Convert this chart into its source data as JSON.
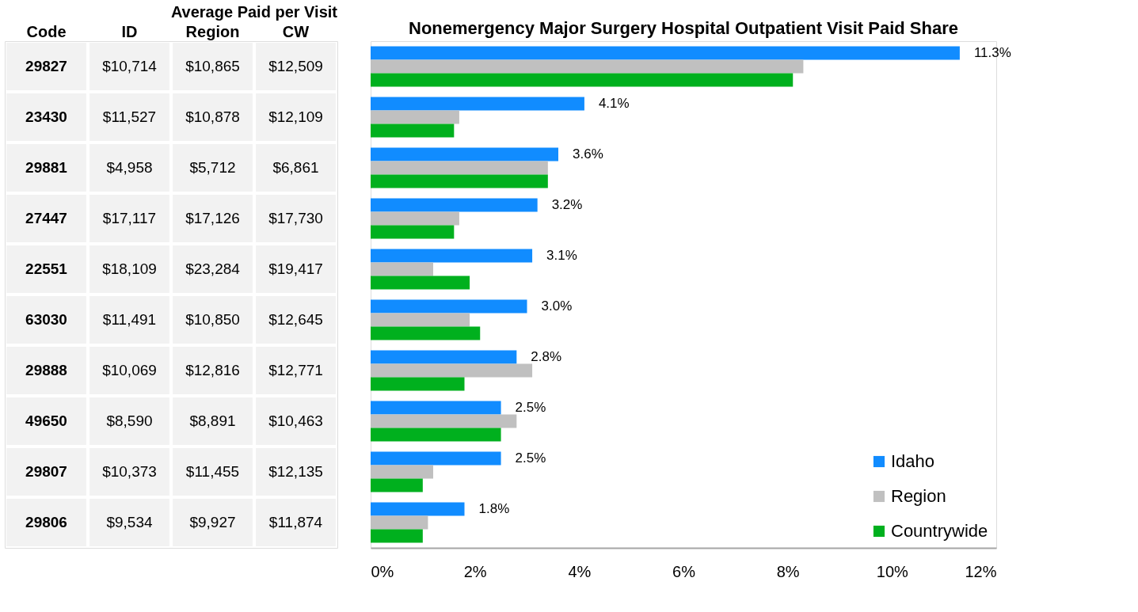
{
  "chart_data": [
    {
      "type": "other",
      "title": "Average Paid per Visit",
      "ylabel": "Code",
      "categories": [
        "29827",
        "23430",
        "29881",
        "27447",
        "22551",
        "63030",
        "29888",
        "49650",
        "29807",
        "29806"
      ],
      "series": [
        {
          "name": "ID",
          "values": [
            10714,
            11527,
            4958,
            17117,
            18109,
            11491,
            10069,
            8590,
            10373,
            9534
          ],
          "value_labels": [
            "$10,714",
            "$11,527",
            "$4,958",
            "$17,117",
            "$18,109",
            "$11,491",
            "$10,069",
            "$8,590",
            "$10,373",
            "$9,534"
          ]
        },
        {
          "name": "Region",
          "values": [
            10865,
            10878,
            5712,
            17126,
            23284,
            10850,
            12816,
            8891,
            11455,
            9927
          ],
          "value_labels": [
            "$10,865",
            "$10,878",
            "$5,712",
            "$17,126",
            "$23,284",
            "$10,850",
            "$12,816",
            "$8,891",
            "$11,455",
            "$9,927"
          ]
        },
        {
          "name": "CW",
          "values": [
            12509,
            12109,
            6861,
            17730,
            19417,
            12645,
            12771,
            10463,
            12135,
            11874
          ],
          "value_labels": [
            "$12,509",
            "$12,109",
            "$6,861",
            "$17,730",
            "$19,417",
            "$12,645",
            "$12,771",
            "$10,463",
            "$12,135",
            "$11,874"
          ]
        }
      ]
    },
    {
      "type": "bar",
      "orientation": "horizontal",
      "title": "Nonemergency Major Surgery Hospital Outpatient Visit Paid Share",
      "categories": [
        "29827",
        "23430",
        "29881",
        "27447",
        "22551",
        "63030",
        "29888",
        "49650",
        "29807",
        "29806"
      ],
      "tick_labels": "x",
      "grid": false,
      "legend": "bottom right",
      "xlim": [
        0,
        12
      ],
      "xticks": [
        {
          "value": 0,
          "label": "0%"
        },
        {
          "value": 2,
          "label": "2%"
        },
        {
          "value": 4,
          "label": "4%"
        },
        {
          "value": 6,
          "label": "6%"
        },
        {
          "value": 8,
          "label": "8%"
        },
        {
          "value": 10,
          "label": "10%"
        },
        {
          "value": 12,
          "label": "12%"
        }
      ],
      "series": [
        {
          "name": "Idaho",
          "color": "#118cff",
          "values": [
            11.3,
            4.1,
            3.6,
            3.2,
            3.1,
            3.0,
            2.8,
            2.5,
            2.5,
            1.8
          ],
          "value_labels": [
            "11.3%",
            "4.1%",
            "3.6%",
            "3.2%",
            "3.1%",
            "3.0%",
            "2.8%",
            "2.5%",
            "2.5%",
            "1.8%"
          ]
        },
        {
          "name": "Region",
          "color": "#c0c0c0",
          "values": [
            8.3,
            1.7,
            3.4,
            1.7,
            1.2,
            1.9,
            3.1,
            2.8,
            1.2,
            1.1
          ]
        },
        {
          "name": "Countrywide",
          "color": "#00b01e",
          "values": [
            8.1,
            1.6,
            3.4,
            1.6,
            1.9,
            2.1,
            1.8,
            2.5,
            1.0,
            1.0
          ]
        }
      ]
    }
  ]
}
